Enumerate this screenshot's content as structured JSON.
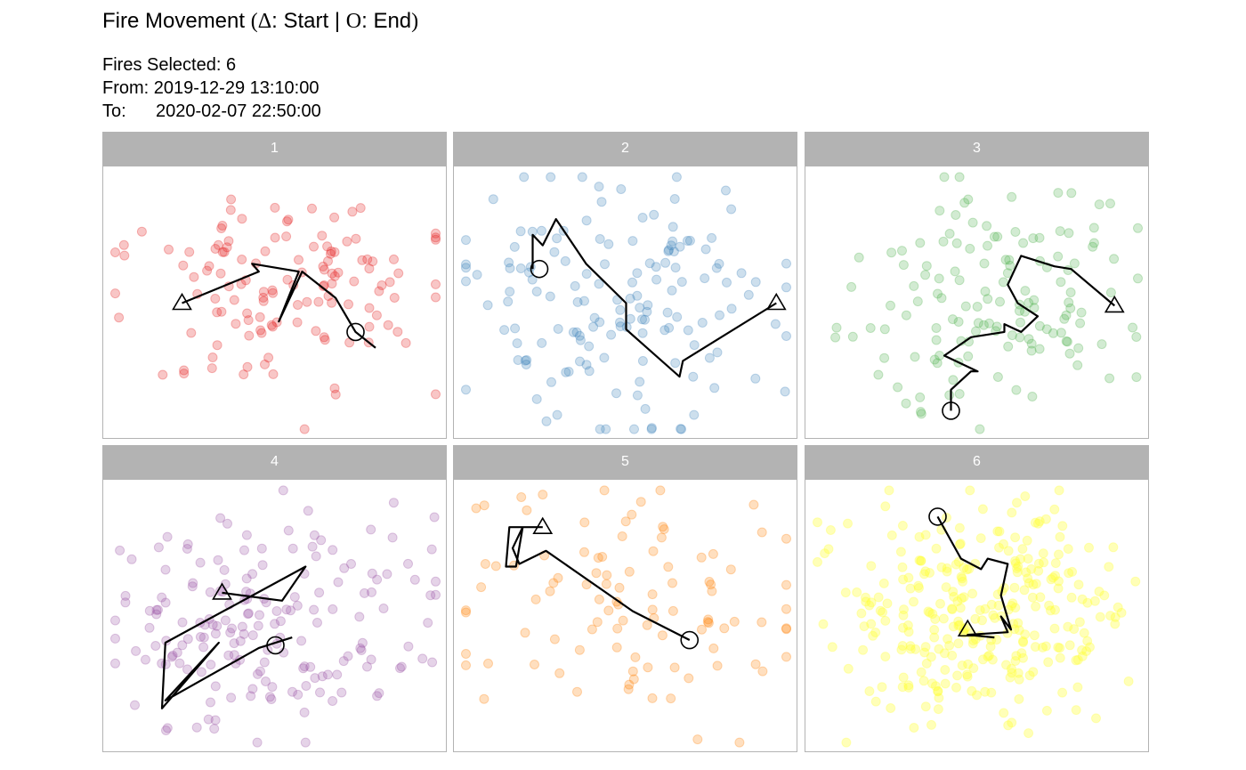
{
  "header": {
    "title_text": "Fire Movement",
    "title_sym_open": "(",
    "title_start_sym": "Δ",
    "title_start_label": ": Start",
    "title_sep": "|",
    "title_end_sym": "O",
    "title_end_label": ": End",
    "title_sym_close": ")",
    "line1": "Fires Selected: 6",
    "line2": "From: 2019-12-29 13:10:00",
    "line3": "To:      2020-02-07 22:50:00"
  },
  "chart_data": {
    "type": "scatter",
    "facet_labels": [
      "1",
      "2",
      "3",
      "4",
      "5",
      "6"
    ],
    "grid": false,
    "axes": false,
    "series": [
      {
        "facet": "1",
        "color": "#E41A1C",
        "points": {
          "n": 130,
          "cx": 0.54,
          "cy": 0.45,
          "sx": 0.22,
          "sy": 0.2,
          "seed": 11
        },
        "path": [
          [
            0.22,
            0.5
          ],
          [
            0.45,
            0.38
          ],
          [
            0.43,
            0.35
          ],
          [
            0.57,
            0.38
          ],
          [
            0.51,
            0.57
          ],
          [
            0.58,
            0.38
          ],
          [
            0.68,
            0.48
          ],
          [
            0.74,
            0.61
          ],
          [
            0.8,
            0.67
          ]
        ],
        "start": [
          0.22,
          0.5
        ],
        "end": [
          0.74,
          0.61
        ]
      },
      {
        "facet": "2",
        "color": "#377EB8",
        "points": {
          "n": 150,
          "cx": 0.45,
          "cy": 0.48,
          "sx": 0.24,
          "sy": 0.24,
          "seed": 23
        },
        "path": [
          [
            0.22,
            0.37
          ],
          [
            0.22,
            0.24
          ],
          [
            0.25,
            0.28
          ],
          [
            0.29,
            0.18
          ],
          [
            0.38,
            0.35
          ],
          [
            0.5,
            0.5
          ],
          [
            0.5,
            0.6
          ],
          [
            0.66,
            0.78
          ],
          [
            0.67,
            0.72
          ],
          [
            0.95,
            0.5
          ]
        ],
        "start": [
          0.95,
          0.5
        ],
        "end": [
          0.24,
          0.37
        ]
      },
      {
        "facet": "3",
        "color": "#4DAF4A",
        "points": {
          "n": 140,
          "cx": 0.55,
          "cy": 0.5,
          "sx": 0.2,
          "sy": 0.22,
          "seed": 37
        },
        "path": [
          [
            0.42,
            0.91
          ],
          [
            0.42,
            0.83
          ],
          [
            0.48,
            0.76
          ],
          [
            0.5,
            0.76
          ],
          [
            0.4,
            0.7
          ],
          [
            0.48,
            0.63
          ],
          [
            0.58,
            0.61
          ],
          [
            0.58,
            0.58
          ],
          [
            0.63,
            0.61
          ],
          [
            0.68,
            0.55
          ],
          [
            0.62,
            0.5
          ],
          [
            0.59,
            0.43
          ],
          [
            0.63,
            0.32
          ],
          [
            0.73,
            0.36
          ],
          [
            0.78,
            0.37
          ],
          [
            0.91,
            0.51
          ]
        ],
        "start": [
          0.91,
          0.51
        ],
        "end": [
          0.42,
          0.91
        ]
      },
      {
        "facet": "4",
        "color": "#984EA3",
        "points": {
          "n": 180,
          "cx": 0.45,
          "cy": 0.52,
          "sx": 0.26,
          "sy": 0.22,
          "seed": 51
        },
        "path": [
          [
            0.34,
            0.41
          ],
          [
            0.52,
            0.44
          ],
          [
            0.59,
            0.31
          ],
          [
            0.17,
            0.6
          ],
          [
            0.16,
            0.85
          ],
          [
            0.33,
            0.6
          ],
          [
            0.17,
            0.82
          ],
          [
            0.45,
            0.62
          ],
          [
            0.55,
            0.58
          ]
        ],
        "start": [
          0.34,
          0.41
        ],
        "end": [
          0.5,
          0.61
        ]
      },
      {
        "facet": "5",
        "color": "#FF7F00",
        "points": {
          "n": 100,
          "cx": 0.48,
          "cy": 0.45,
          "sx": 0.26,
          "sy": 0.24,
          "seed": 63
        },
        "path": [
          [
            0.25,
            0.16
          ],
          [
            0.15,
            0.16
          ],
          [
            0.14,
            0.31
          ],
          [
            0.17,
            0.31
          ],
          [
            0.19,
            0.16
          ],
          [
            0.16,
            0.24
          ],
          [
            0.18,
            0.3
          ],
          [
            0.26,
            0.25
          ],
          [
            0.52,
            0.48
          ],
          [
            0.69,
            0.59
          ]
        ],
        "start": [
          0.25,
          0.16
        ],
        "end": [
          0.69,
          0.59
        ]
      },
      {
        "facet": "6",
        "color": "#FFFF33",
        "points": {
          "n": 300,
          "cx": 0.5,
          "cy": 0.5,
          "sx": 0.22,
          "sy": 0.2,
          "seed": 79
        },
        "path": [
          [
            0.38,
            0.12
          ],
          [
            0.45,
            0.28
          ],
          [
            0.51,
            0.32
          ],
          [
            0.53,
            0.28
          ],
          [
            0.59,
            0.3
          ],
          [
            0.57,
            0.42
          ],
          [
            0.6,
            0.55
          ],
          [
            0.57,
            0.5
          ],
          [
            0.59,
            0.56
          ],
          [
            0.47,
            0.57
          ],
          [
            0.55,
            0.58
          ]
        ],
        "start": [
          0.47,
          0.55
        ],
        "end": [
          0.38,
          0.12
        ]
      }
    ]
  }
}
